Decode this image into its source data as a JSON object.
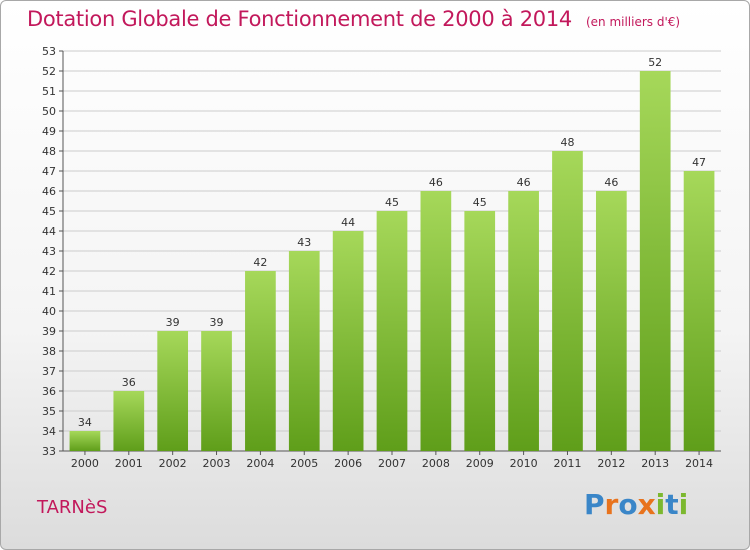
{
  "header": {
    "title": "Dotation Globale de Fonctionnement de 2000 à 2014",
    "subtitle": "(en milliers d'€)"
  },
  "footer": {
    "commune": "TARNèS",
    "brand": "Proxiti"
  },
  "colors": {
    "title": "#c2185b",
    "bar_top": "#a6d85a",
    "bar_bottom": "#5f9e1a",
    "grid": "#cccccc",
    "brand_letters": [
      "#3a86c8",
      "#e8731d",
      "#3a86c8",
      "#e8731d",
      "#7cb82f",
      "#3a86c8",
      "#7cb82f"
    ]
  },
  "chart_data": {
    "type": "bar",
    "categories": [
      "2000",
      "2001",
      "2002",
      "2003",
      "2004",
      "2005",
      "2006",
      "2007",
      "2008",
      "2009",
      "2010",
      "2011",
      "2012",
      "2013",
      "2014"
    ],
    "values": [
      34,
      36,
      39,
      39,
      42,
      43,
      44,
      45,
      46,
      45,
      46,
      48,
      46,
      52,
      47
    ],
    "ylim": [
      33,
      53
    ],
    "yticks": [
      33,
      34,
      35,
      36,
      37,
      38,
      39,
      40,
      41,
      42,
      43,
      44,
      45,
      46,
      47,
      48,
      49,
      50,
      51,
      52,
      53
    ],
    "grid": true,
    "xlabel": "",
    "ylabel": ""
  }
}
